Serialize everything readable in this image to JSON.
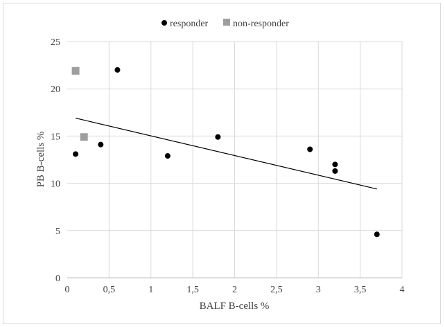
{
  "chart_data": {
    "type": "scatter",
    "title": "",
    "xlabel": "BALF B-cells %",
    "ylabel": "PB B-cells %",
    "xlim": [
      0,
      4
    ],
    "ylim": [
      0,
      25
    ],
    "x_ticks": [
      "0",
      "0,5",
      "1",
      "1,5",
      "2",
      "2,5",
      "3",
      "3,5",
      "4"
    ],
    "y_ticks": [
      "0",
      "5",
      "10",
      "15",
      "20",
      "25"
    ],
    "grid": true,
    "legend_position": "top",
    "series": [
      {
        "name": "responder",
        "marker": "circle",
        "color": "#000000",
        "points": [
          {
            "x": 0.1,
            "y": 13.1
          },
          {
            "x": 0.4,
            "y": 14.1
          },
          {
            "x": 0.6,
            "y": 22.0
          },
          {
            "x": 1.2,
            "y": 12.9
          },
          {
            "x": 1.8,
            "y": 14.9
          },
          {
            "x": 2.9,
            "y": 13.6
          },
          {
            "x": 3.2,
            "y": 12.0
          },
          {
            "x": 3.2,
            "y": 11.3
          },
          {
            "x": 3.7,
            "y": 4.6
          }
        ]
      },
      {
        "name": "non-responder",
        "marker": "square",
        "color": "#9e9e9e",
        "points": [
          {
            "x": 0.1,
            "y": 21.9
          },
          {
            "x": 0.2,
            "y": 14.9
          }
        ]
      }
    ],
    "trendline": {
      "color": "#000000",
      "points": [
        {
          "x": 0.1,
          "y": 16.9
        },
        {
          "x": 3.7,
          "y": 9.4
        }
      ]
    }
  }
}
